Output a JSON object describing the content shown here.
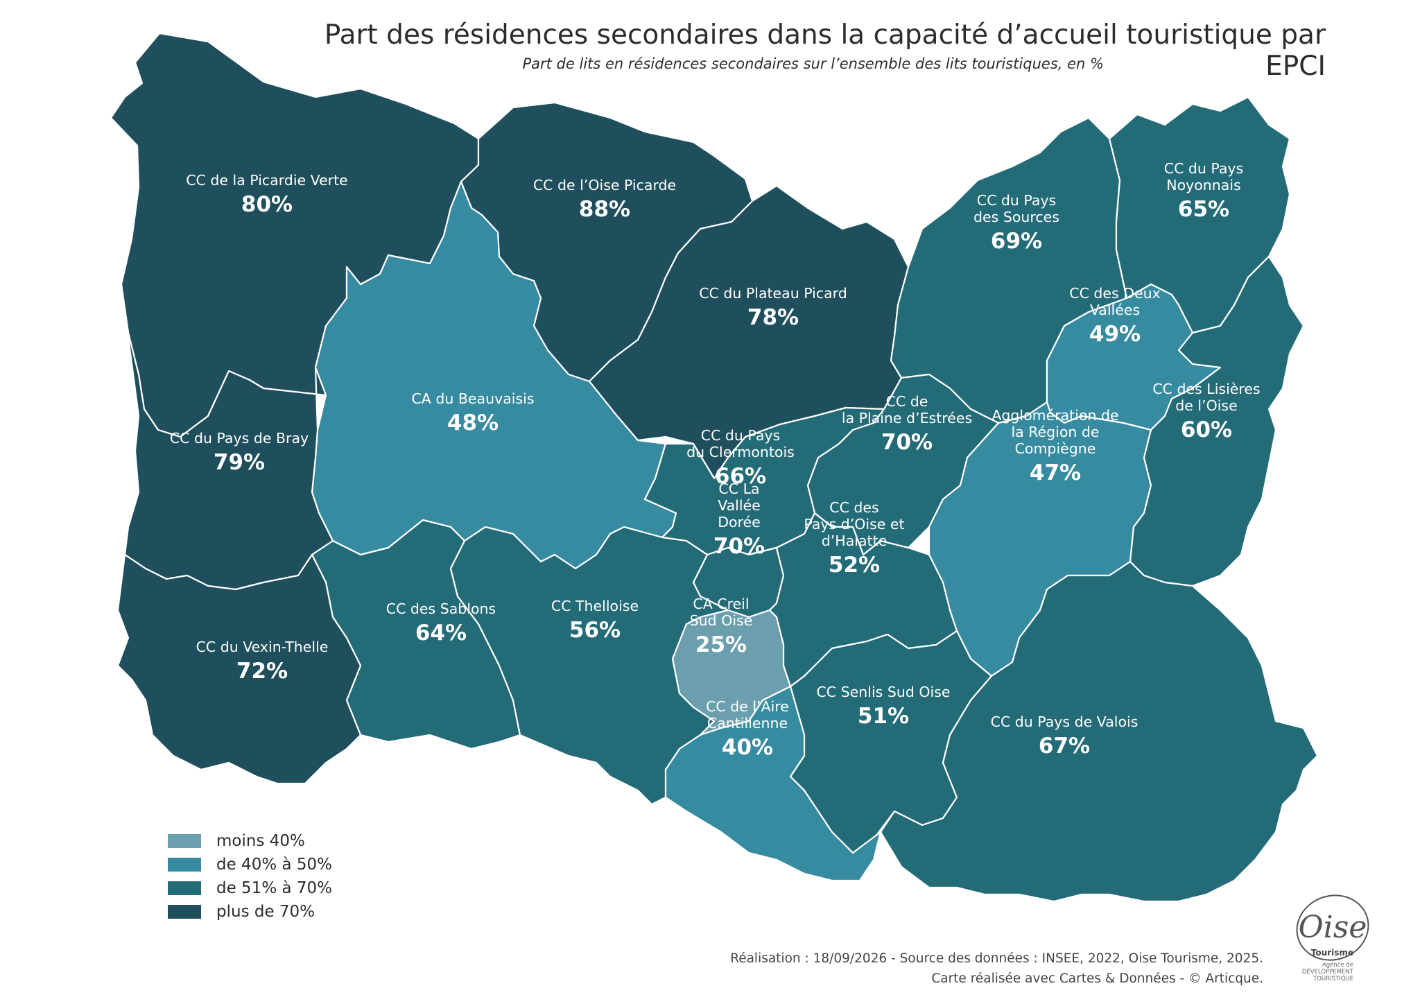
{
  "header": {
    "title": "Part des résidences secondaires dans la capacité d’accueil touristique par EPCI",
    "subtitle": "Part de lits en résidences secondaires sur l’ensemble des lits touristiques, en %"
  },
  "legend": {
    "classes": [
      {
        "label": "moins 40%",
        "color": "#6b9fae"
      },
      {
        "label": "de 40% à 50%",
        "color": "#378ba0"
      },
      {
        "label": "de 51% à 70%",
        "color": "#246b78"
      },
      {
        "label": "plus de 70%",
        "color": "#1f4f5c"
      }
    ]
  },
  "epci": [
    {
      "id": "picardie-verte",
      "name": [
        "CC de la Picardie Verte"
      ],
      "value": "80%",
      "class": 3
    },
    {
      "id": "oise-picarde",
      "name": [
        "CC de l’Oise Picarde"
      ],
      "value": "88%",
      "class": 3
    },
    {
      "id": "plateau-picard",
      "name": [
        "CC du Plateau Picard"
      ],
      "value": "78%",
      "class": 3
    },
    {
      "id": "pays-des-sources",
      "name": [
        "CC du Pays",
        "des Sources"
      ],
      "value": "69%",
      "class": 2
    },
    {
      "id": "pays-noyonnais",
      "name": [
        "CC du Pays",
        "Noyonnais"
      ],
      "value": "65%",
      "class": 2
    },
    {
      "id": "deux-vallees",
      "name": [
        "CC des Deux",
        "Vallées"
      ],
      "value": "49%",
      "class": 1
    },
    {
      "id": "beauvaisis",
      "name": [
        "CA du Beauvaisis"
      ],
      "value": "48%",
      "class": 1
    },
    {
      "id": "pays-de-bray",
      "name": [
        "CC du Pays de Bray"
      ],
      "value": "79%",
      "class": 3
    },
    {
      "id": "plaine-estrees",
      "name": [
        "CC de",
        "la Plaine d’Estrées"
      ],
      "value": "70%",
      "class": 2
    },
    {
      "id": "clermontois",
      "name": [
        "CC du Pays",
        "du Clermontois"
      ],
      "value": "66%",
      "class": 2
    },
    {
      "id": "compiegne",
      "name": [
        "Agglomération de",
        "la Région de",
        "Compiègne"
      ],
      "value": "47%",
      "class": 1
    },
    {
      "id": "lisieres-oise",
      "name": [
        "CC des Lisières",
        "de l’Oise"
      ],
      "value": "60%",
      "class": 2
    },
    {
      "id": "vallee-doree",
      "name": [
        "CC La",
        "Vallée",
        "Dorée"
      ],
      "value": "70%",
      "class": 2
    },
    {
      "id": "pays-oise-halatte",
      "name": [
        "CC des",
        "Pays d’Oise et",
        "d’Halatte"
      ],
      "value": "52%",
      "class": 2
    },
    {
      "id": "sablons",
      "name": [
        "CC des Sablons"
      ],
      "value": "64%",
      "class": 2
    },
    {
      "id": "thelloise",
      "name": [
        "CC Thelloise"
      ],
      "value": "56%",
      "class": 2
    },
    {
      "id": "creil-sud-oise",
      "name": [
        "CA Creil",
        "Sud Oise"
      ],
      "value": "25%",
      "class": 0
    },
    {
      "id": "vexin-thelle",
      "name": [
        "CC du Vexin-Thelle"
      ],
      "value": "72%",
      "class": 3
    },
    {
      "id": "senlis-sud-oise",
      "name": [
        "CC Senlis Sud Oise"
      ],
      "value": "51%",
      "class": 2
    },
    {
      "id": "aire-cantilienne",
      "name": [
        "CC de l’Aire",
        "Cantilienne"
      ],
      "value": "40%",
      "class": 1
    },
    {
      "id": "pays-de-valois",
      "name": [
        "CC du Pays de Valois"
      ],
      "value": "67%",
      "class": 2
    }
  ],
  "credits": {
    "line1": "Réalisation : 18/09/2026 -  Source des données : INSEE, 2022, Oise Tourisme, 2025.",
    "line2": "Carte réalisée avec Cartes & Données - © Articque."
  },
  "logo": {
    "brand": "Oise",
    "sub": "Tourisme",
    "tagline1": "Agence de",
    "tagline2": "DÉVELOPPEMENT",
    "tagline3": "TOURISTIQUE"
  }
}
